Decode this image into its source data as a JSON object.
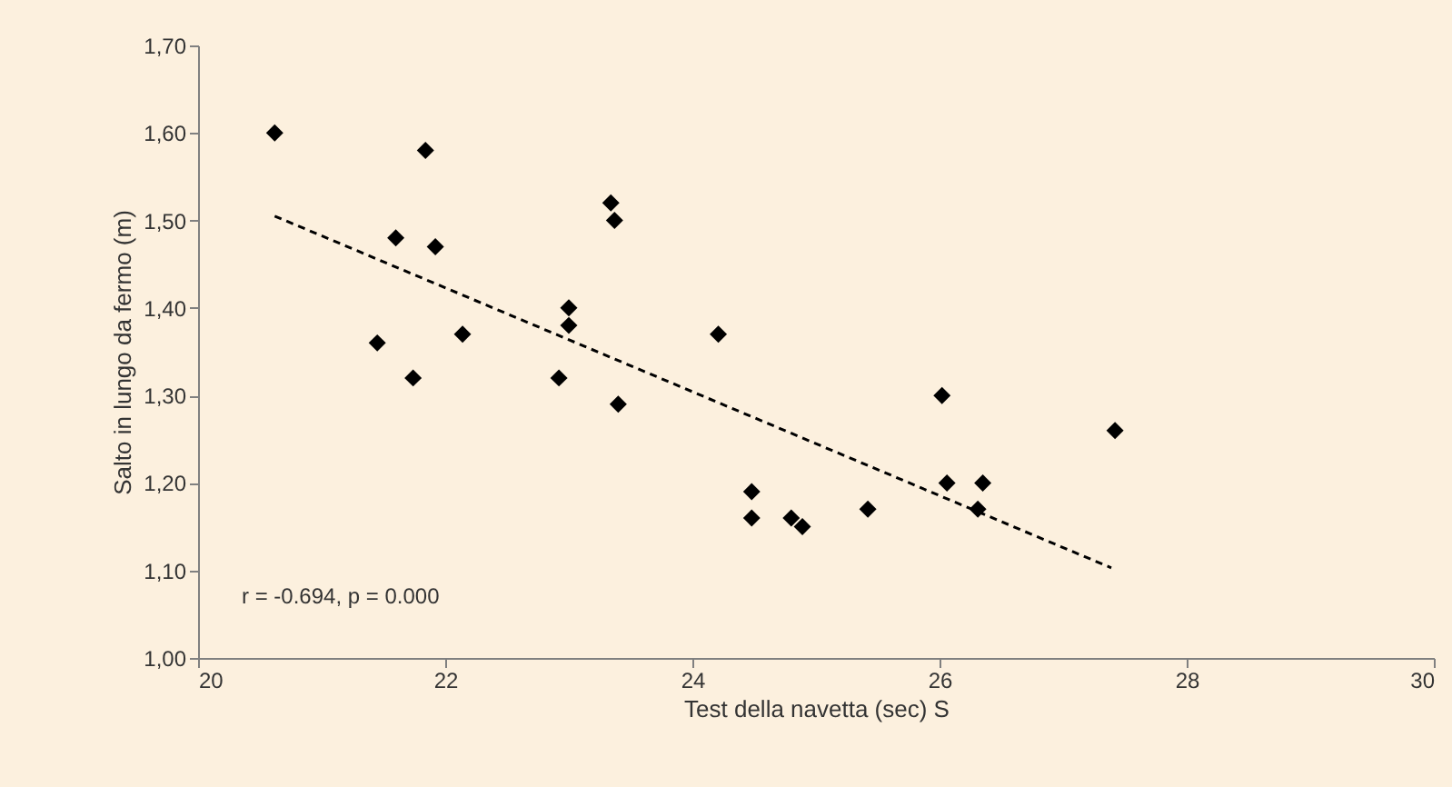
{
  "chart_data": {
    "type": "scatter",
    "xlabel": "Test della navetta (sec) S",
    "ylabel": "Salto in lungo da fermo (m)",
    "annotations": [
      "r = -0.694, p = 0.000"
    ],
    "series": [
      {
        "color": "#000000",
        "marker": "diamond",
        "x": [
          20.62,
          21.84,
          21.6,
          21.92,
          21.45,
          21.74,
          22.14,
          23.0,
          23.0,
          22.92,
          23.34,
          23.37,
          23.4,
          24.21,
          24.48,
          24.48,
          24.8,
          24.89,
          25.42,
          26.02,
          26.06,
          26.35,
          26.31,
          27.42
        ],
        "values": [
          1.6,
          1.58,
          1.48,
          1.47,
          1.36,
          1.32,
          1.37,
          1.4,
          1.38,
          1.32,
          1.52,
          1.5,
          1.29,
          1.37,
          1.19,
          1.16,
          1.16,
          1.15,
          1.17,
          1.3,
          1.2,
          1.2,
          1.17,
          1.26
        ]
      },
      {
        "type": "line",
        "color": "#000000",
        "line_style": "dashed",
        "x": [
          20.62,
          27.39
        ],
        "values": [
          1.505,
          1.103
        ]
      }
    ],
    "xlim": [
      20,
      30
    ],
    "xticks": [
      20,
      22,
      24,
      26,
      28,
      30
    ],
    "ylim": [
      1.0,
      1.7
    ],
    "yticks": [
      {
        "value": 1.0,
        "label": "1,00"
      },
      {
        "value": 1.1,
        "label": "1,10"
      },
      {
        "value": 1.2,
        "label": "1,20"
      },
      {
        "value": 1.3,
        "label": "1,30"
      },
      {
        "value": 1.4,
        "label": "1,40"
      },
      {
        "value": 1.5,
        "label": "1,50"
      },
      {
        "value": 1.6,
        "label": "1,60"
      },
      {
        "value": 1.7,
        "label": "1,70"
      }
    ],
    "grid": false
  }
}
